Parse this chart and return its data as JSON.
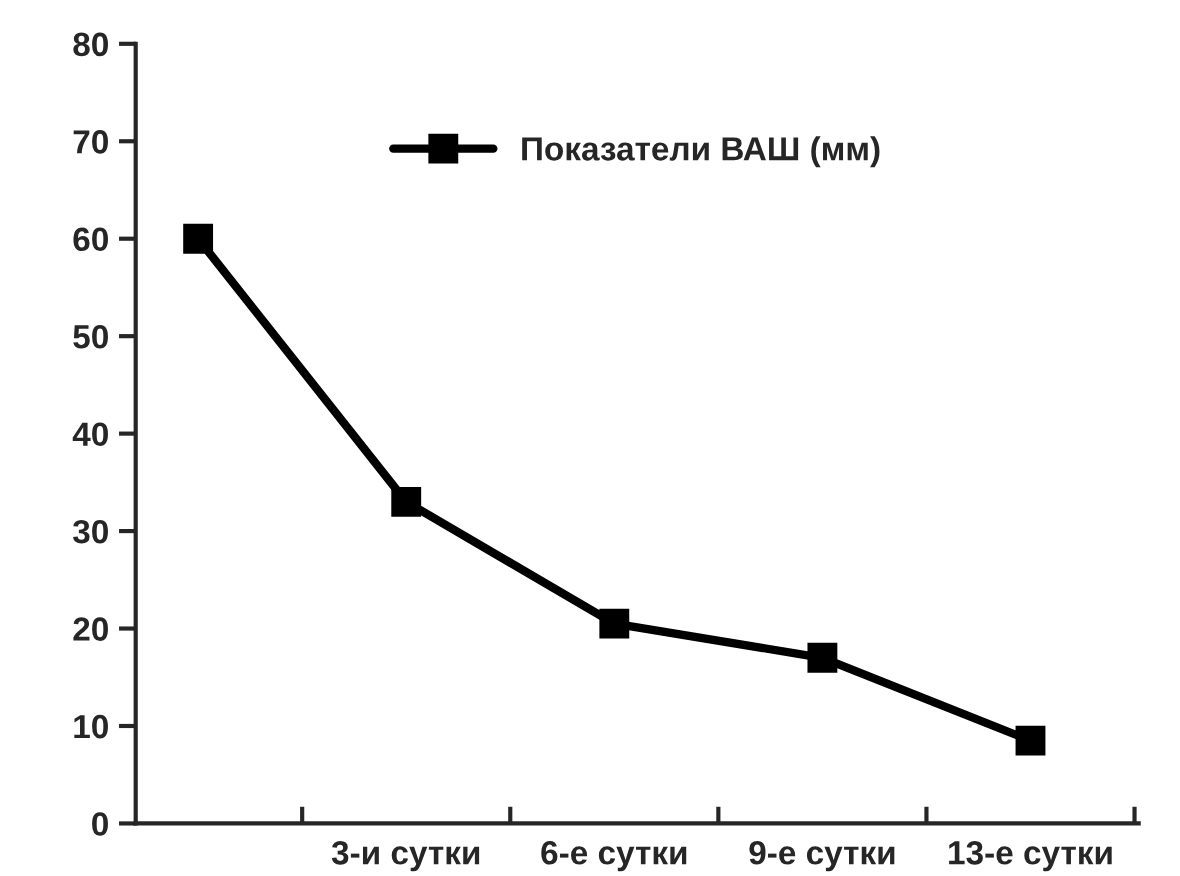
{
  "chart_data": {
    "type": "line",
    "categories": [
      null,
      "3-и сутки",
      "6-е сутки",
      "9-е сутки",
      "13-е сутки"
    ],
    "series": [
      {
        "name": "Показатели ВАШ (мм)",
        "color": "#000000",
        "values": [
          60,
          33,
          20.5,
          17,
          8.5
        ]
      }
    ],
    "ylim": [
      0,
      80
    ],
    "yticks": [
      0,
      10,
      20,
      30,
      40,
      50,
      60,
      70,
      80
    ],
    "marker": "square",
    "line_style": "solid",
    "grid": false,
    "legend": "top"
  }
}
